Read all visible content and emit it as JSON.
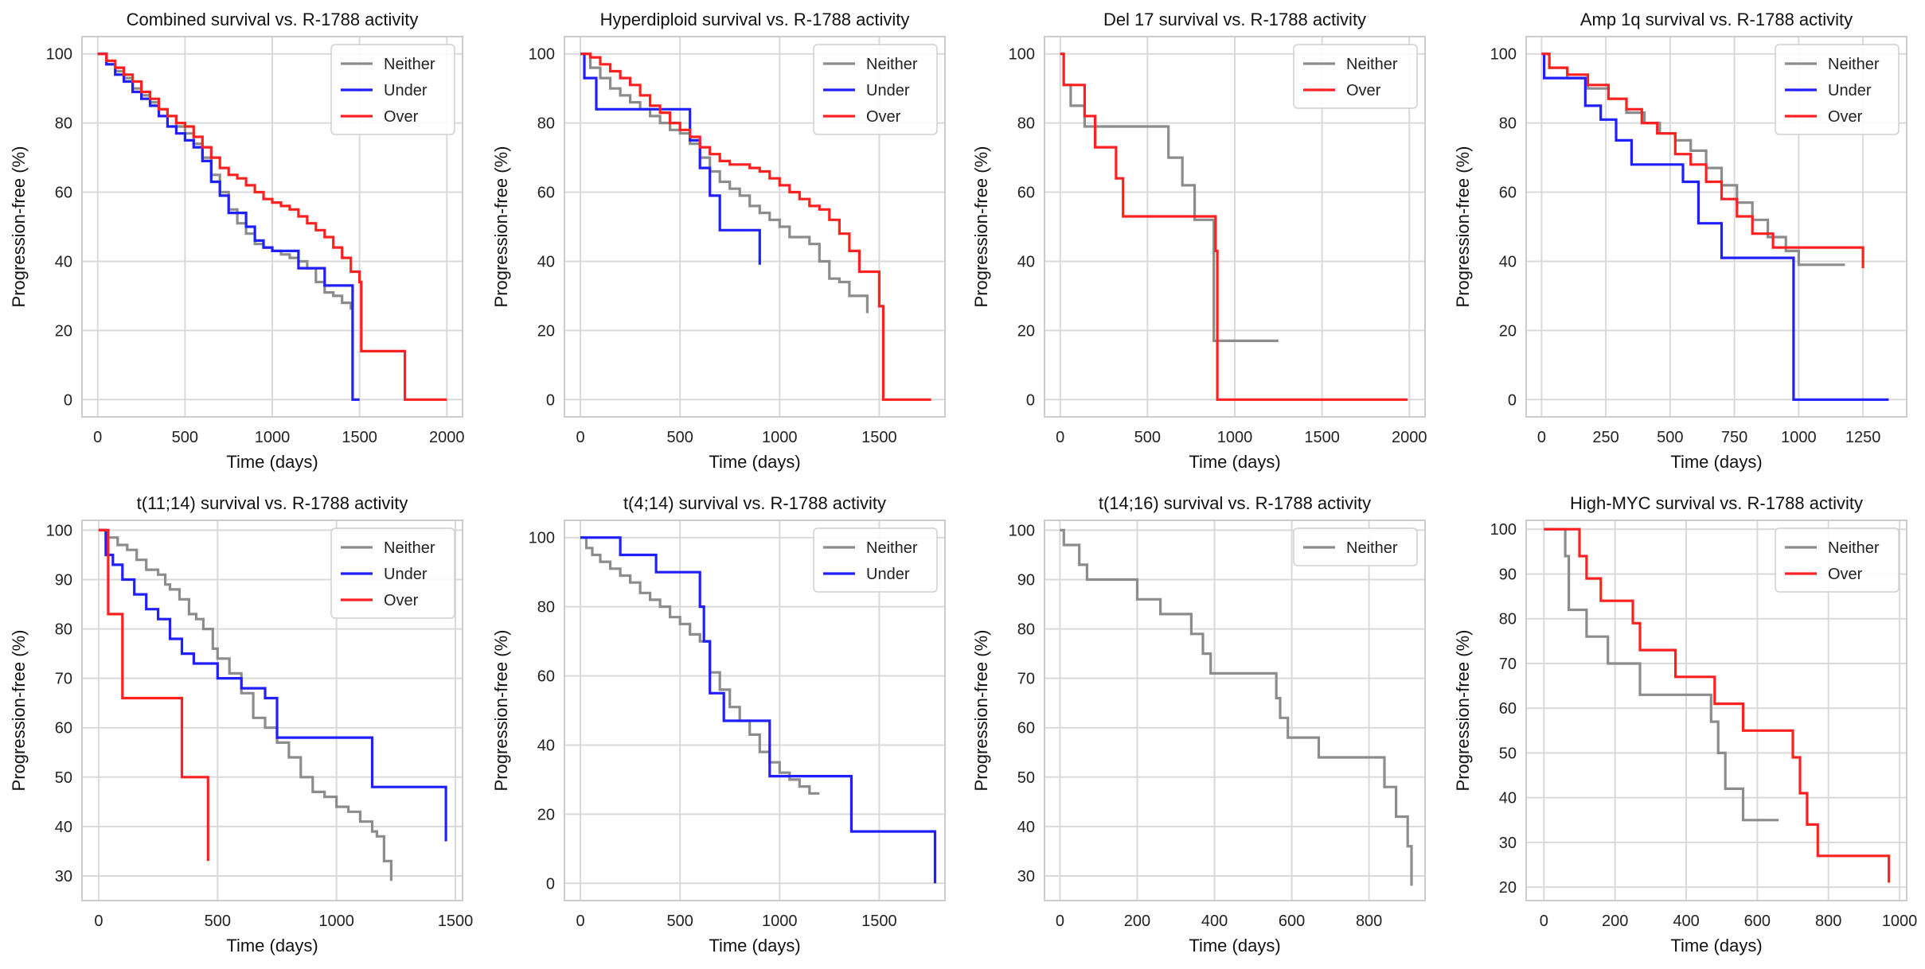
{
  "colors": {
    "Neither": "#8c8c8c",
    "Under": "#1f1fff",
    "Over": "#ff2020",
    "grid": "#d9d9d9",
    "frame": "#cccccc"
  },
  "chart_data": [
    {
      "type": "line",
      "title": "Combined survival vs. R-1788 activity",
      "xlabel": "Time (days)",
      "ylabel": "Progression-free (%)",
      "xlim": [
        -90,
        2090
      ],
      "ylim": [
        -5,
        105
      ],
      "xticks": [
        0,
        500,
        1000,
        1500,
        2000
      ],
      "yticks": [
        0,
        20,
        40,
        60,
        80,
        100
      ],
      "legend": [
        "Neither",
        "Under",
        "Over"
      ],
      "series": [
        {
          "name": "Neither",
          "x": [
            0,
            50,
            100,
            150,
            200,
            250,
            300,
            350,
            400,
            450,
            500,
            550,
            600,
            650,
            700,
            750,
            800,
            850,
            900,
            950,
            1000,
            1050,
            1100,
            1150,
            1200,
            1250,
            1300,
            1350,
            1400,
            1450
          ],
          "y": [
            100,
            97,
            95,
            93,
            90,
            88,
            86,
            84,
            82,
            79,
            77,
            74,
            70,
            65,
            60,
            55,
            51,
            48,
            45,
            44,
            43,
            42,
            41,
            40,
            38,
            34,
            31,
            30,
            28,
            26
          ]
        },
        {
          "name": "Under",
          "x": [
            0,
            50,
            100,
            150,
            200,
            250,
            300,
            350,
            400,
            450,
            500,
            550,
            600,
            650,
            700,
            750,
            800,
            850,
            900,
            950,
            1000,
            1100,
            1150,
            1300,
            1440,
            1460,
            1500
          ],
          "y": [
            100,
            97,
            94,
            92,
            89,
            87,
            85,
            82,
            79,
            77,
            75,
            73,
            69,
            63,
            59,
            54,
            54,
            50,
            46,
            44,
            43,
            43,
            38,
            33,
            33,
            0,
            0
          ]
        },
        {
          "name": "Over",
          "x": [
            0,
            50,
            100,
            150,
            200,
            250,
            300,
            350,
            400,
            450,
            500,
            550,
            600,
            650,
            700,
            750,
            800,
            850,
            900,
            950,
            1000,
            1050,
            1100,
            1150,
            1200,
            1250,
            1300,
            1350,
            1400,
            1450,
            1500,
            1510,
            1520,
            1750,
            1760,
            2000
          ],
          "y": [
            100,
            98,
            96,
            94,
            92,
            89,
            87,
            84,
            82,
            80,
            79,
            76,
            73,
            70,
            67,
            65,
            64,
            62,
            60,
            58,
            57,
            56,
            55,
            53,
            51,
            49,
            47,
            44,
            41,
            37,
            34,
            14,
            14,
            14,
            0,
            0
          ]
        }
      ]
    },
    {
      "type": "line",
      "title": "Hyperdiploid survival vs. R-1788 activity",
      "xlabel": "Time (days)",
      "ylabel": "Progression-free (%)",
      "xlim": [
        -80,
        1830
      ],
      "ylim": [
        -5,
        105
      ],
      "xticks": [
        0,
        500,
        1000,
        1500
      ],
      "yticks": [
        0,
        20,
        40,
        60,
        80,
        100
      ],
      "legend": [
        "Neither",
        "Under",
        "Over"
      ],
      "series": [
        {
          "name": "Neither",
          "x": [
            0,
            50,
            100,
            150,
            200,
            250,
            300,
            350,
            400,
            450,
            500,
            550,
            600,
            650,
            700,
            750,
            800,
            850,
            900,
            950,
            1000,
            1050,
            1100,
            1150,
            1200,
            1250,
            1300,
            1350,
            1400,
            1440
          ],
          "y": [
            100,
            96,
            93,
            90,
            88,
            86,
            84,
            82,
            80,
            78,
            77,
            74,
            70,
            66,
            63,
            61,
            59,
            56,
            54,
            52,
            50,
            47,
            47,
            45,
            40,
            35,
            34,
            30,
            30,
            25
          ]
        },
        {
          "name": "Under",
          "x": [
            0,
            20,
            80,
            500,
            550,
            600,
            650,
            700,
            900
          ],
          "y": [
            100,
            93,
            84,
            84,
            75,
            67,
            59,
            49,
            39
          ]
        },
        {
          "name": "Over",
          "x": [
            0,
            50,
            100,
            150,
            200,
            250,
            300,
            350,
            400,
            450,
            500,
            550,
            600,
            650,
            700,
            750,
            800,
            850,
            900,
            950,
            1000,
            1050,
            1100,
            1150,
            1200,
            1250,
            1300,
            1350,
            1400,
            1450,
            1500,
            1520,
            1530,
            1760
          ],
          "y": [
            100,
            99,
            97,
            95,
            93,
            91,
            88,
            85,
            83,
            80,
            78,
            76,
            73,
            71,
            69,
            68,
            68,
            67,
            66,
            64,
            62,
            60,
            58,
            56,
            55,
            52,
            48,
            43,
            37,
            37,
            27,
            0,
            0,
            0
          ]
        }
      ]
    },
    {
      "type": "line",
      "title": "Del 17 survival vs. R-1788 activity",
      "xlabel": "Time (days)",
      "ylabel": "Progression-free (%)",
      "xlim": [
        -90,
        2090
      ],
      "ylim": [
        -5,
        105
      ],
      "xticks": [
        0,
        500,
        1000,
        1500,
        2000
      ],
      "yticks": [
        0,
        20,
        40,
        60,
        80,
        100
      ],
      "legend": [
        "Neither",
        "Over"
      ],
      "series": [
        {
          "name": "Neither",
          "x": [
            0,
            20,
            60,
            140,
            580,
            620,
            700,
            770,
            860,
            880,
            1250
          ],
          "y": [
            100,
            91,
            85,
            79,
            79,
            70,
            62,
            52,
            52,
            17,
            17
          ]
        },
        {
          "name": "Over",
          "x": [
            0,
            20,
            140,
            200,
            320,
            360,
            880,
            890,
            900,
            1990
          ],
          "y": [
            100,
            91,
            82,
            73,
            64,
            53,
            53,
            43,
            0,
            0
          ]
        }
      ]
    },
    {
      "type": "line",
      "title": "Amp 1q survival vs. R-1788 activity",
      "xlabel": "Time (days)",
      "ylabel": "Progression-free (%)",
      "xlim": [
        -60,
        1420
      ],
      "ylim": [
        -5,
        105
      ],
      "xticks": [
        0,
        250,
        500,
        750,
        1000,
        1250
      ],
      "yticks": [
        0,
        20,
        40,
        60,
        80,
        100
      ],
      "legend": [
        "Neither",
        "Under",
        "Over"
      ],
      "series": [
        {
          "name": "Neither",
          "x": [
            0,
            30,
            100,
            180,
            260,
            330,
            400,
            460,
            520,
            580,
            640,
            700,
            760,
            820,
            880,
            950,
            1000,
            1180
          ],
          "y": [
            100,
            96,
            93,
            90,
            87,
            83,
            80,
            77,
            75,
            72,
            67,
            62,
            57,
            52,
            47,
            43,
            39,
            39
          ]
        },
        {
          "name": "Under",
          "x": [
            0,
            10,
            170,
            230,
            290,
            350,
            550,
            610,
            700,
            980,
            1350
          ],
          "y": [
            100,
            93,
            85,
            81,
            75,
            68,
            63,
            51,
            41,
            0,
            0
          ]
        },
        {
          "name": "Over",
          "x": [
            0,
            30,
            100,
            180,
            260,
            330,
            390,
            450,
            520,
            580,
            640,
            700,
            760,
            820,
            900,
            1240,
            1250
          ],
          "y": [
            100,
            96,
            94,
            91,
            87,
            84,
            80,
            77,
            71,
            68,
            63,
            58,
            53,
            48,
            44,
            44,
            38
          ]
        }
      ]
    },
    {
      "type": "line",
      "title": "t(11;14) survival vs. R-1788 activity",
      "xlabel": "Time (days)",
      "ylabel": "Progression-free (%)",
      "xlim": [
        -70,
        1530
      ],
      "ylim": [
        25,
        102
      ],
      "xticks": [
        0,
        500,
        1000,
        1500
      ],
      "yticks": [
        30,
        40,
        50,
        60,
        70,
        80,
        90,
        100
      ],
      "legend": [
        "Neither",
        "Under",
        "Over"
      ],
      "series": [
        {
          "name": "Neither",
          "x": [
            0,
            30,
            80,
            120,
            160,
            200,
            250,
            280,
            300,
            340,
            380,
            410,
            440,
            480,
            500,
            550,
            600,
            650,
            700,
            750,
            800,
            850,
            900,
            950,
            1000,
            1050,
            1100,
            1150,
            1170,
            1200,
            1230
          ],
          "y": [
            100,
            98.5,
            97,
            96,
            94,
            92,
            91,
            89,
            88,
            86,
            83,
            82,
            80,
            76,
            74,
            71,
            67,
            62,
            60,
            57,
            54,
            50,
            47,
            46,
            44,
            43,
            41,
            39,
            38,
            33,
            29
          ]
        },
        {
          "name": "Under",
          "x": [
            0,
            30,
            60,
            100,
            150,
            200,
            250,
            300,
            350,
            400,
            500,
            600,
            700,
            750,
            1150,
            1460
          ],
          "y": [
            100,
            95,
            93,
            90,
            87,
            84,
            82,
            78,
            75,
            73,
            70,
            68,
            66,
            58,
            48,
            37
          ]
        },
        {
          "name": "Over",
          "x": [
            0,
            40,
            100,
            350,
            460
          ],
          "y": [
            100,
            83,
            66,
            50,
            33
          ]
        }
      ]
    },
    {
      "type": "line",
      "title": "t(4;14) survival vs. R-1788 activity",
      "xlabel": "Time (days)",
      "ylabel": "Progression-free (%)",
      "xlim": [
        -80,
        1830
      ],
      "ylim": [
        -5,
        105
      ],
      "xticks": [
        0,
        500,
        1000,
        1500
      ],
      "yticks": [
        0,
        20,
        40,
        60,
        80,
        100
      ],
      "legend": [
        "Neither",
        "Under"
      ],
      "series": [
        {
          "name": "Neither",
          "x": [
            0,
            30,
            60,
            100,
            150,
            200,
            250,
            300,
            350,
            400,
            450,
            500,
            550,
            600,
            650,
            700,
            750,
            800,
            850,
            900,
            950,
            1000,
            1050,
            1100,
            1150,
            1200
          ],
          "y": [
            100,
            97,
            95,
            93,
            91,
            89,
            87,
            84,
            82,
            80,
            77,
            75,
            72,
            70,
            61,
            56,
            51,
            47,
            43,
            38,
            35,
            32,
            30,
            28,
            26,
            26
          ]
        },
        {
          "name": "Under",
          "x": [
            0,
            200,
            380,
            600,
            620,
            650,
            720,
            950,
            1360,
            1780
          ],
          "y": [
            100,
            95,
            90,
            80,
            70,
            55,
            47,
            31,
            15,
            0
          ]
        }
      ]
    },
    {
      "type": "line",
      "title": "t(14;16) survival vs. R-1788 activity",
      "xlabel": "Time (days)",
      "ylabel": "Progression-free (%)",
      "xlim": [
        -40,
        945
      ],
      "ylim": [
        25,
        102
      ],
      "xticks": [
        0,
        200,
        400,
        600,
        800
      ],
      "yticks": [
        30,
        40,
        50,
        60,
        70,
        80,
        90,
        100
      ],
      "legend": [
        "Neither"
      ],
      "series": [
        {
          "name": "Neither",
          "x": [
            0,
            10,
            50,
            70,
            200,
            260,
            340,
            370,
            390,
            560,
            570,
            590,
            670,
            840,
            870,
            900,
            910
          ],
          "y": [
            100,
            97,
            93,
            90,
            86,
            83,
            79,
            75,
            71,
            66,
            62,
            58,
            54,
            48,
            42,
            36,
            28
          ]
        }
      ]
    },
    {
      "type": "line",
      "title": "High-MYC survival vs. R-1788 activity",
      "xlabel": "Time (days)",
      "ylabel": "Progression-free (%)",
      "xlim": [
        -50,
        1020
      ],
      "ylim": [
        17,
        102
      ],
      "xticks": [
        0,
        200,
        400,
        600,
        800,
        1000
      ],
      "yticks": [
        20,
        30,
        40,
        50,
        60,
        70,
        80,
        90,
        100
      ],
      "legend": [
        "Neither",
        "Over"
      ],
      "series": [
        {
          "name": "Neither",
          "x": [
            0,
            60,
            70,
            120,
            180,
            270,
            470,
            490,
            510,
            560,
            660
          ],
          "y": [
            100,
            94,
            82,
            76,
            70,
            63,
            57,
            50,
            42,
            35,
            35
          ]
        },
        {
          "name": "Over",
          "x": [
            0,
            100,
            120,
            160,
            250,
            270,
            370,
            480,
            560,
            700,
            720,
            740,
            770,
            970
          ],
          "y": [
            100,
            94,
            89,
            84,
            79,
            73,
            67,
            61,
            55,
            49,
            41,
            34,
            27,
            21
          ]
        }
      ]
    }
  ]
}
